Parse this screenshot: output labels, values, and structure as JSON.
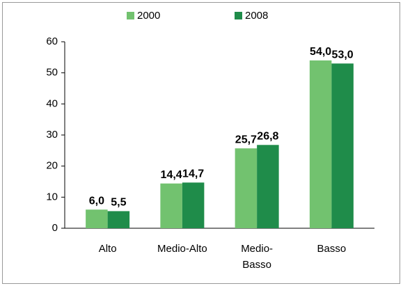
{
  "chart_data": {
    "type": "bar",
    "categories": [
      "Alto",
      "Medio-Alto",
      [
        "Medio-",
        "Basso"
      ],
      "Basso"
    ],
    "series": [
      {
        "name": "2000",
        "color": "#72c26f",
        "values": [
          6.0,
          14.4,
          25.7,
          54.0
        ],
        "value_labels": [
          "6,0",
          "14,4",
          "25,7",
          "54,0"
        ]
      },
      {
        "name": "2008",
        "color": "#1f8c4a",
        "values": [
          5.5,
          14.7,
          26.8,
          53.0
        ],
        "value_labels": [
          "5,5",
          "14,7",
          "26,8",
          "53,0"
        ]
      }
    ],
    "ylim": [
      0,
      60
    ],
    "yticks": [
      0,
      10,
      20,
      30,
      40,
      50,
      60
    ],
    "legend": "top"
  }
}
